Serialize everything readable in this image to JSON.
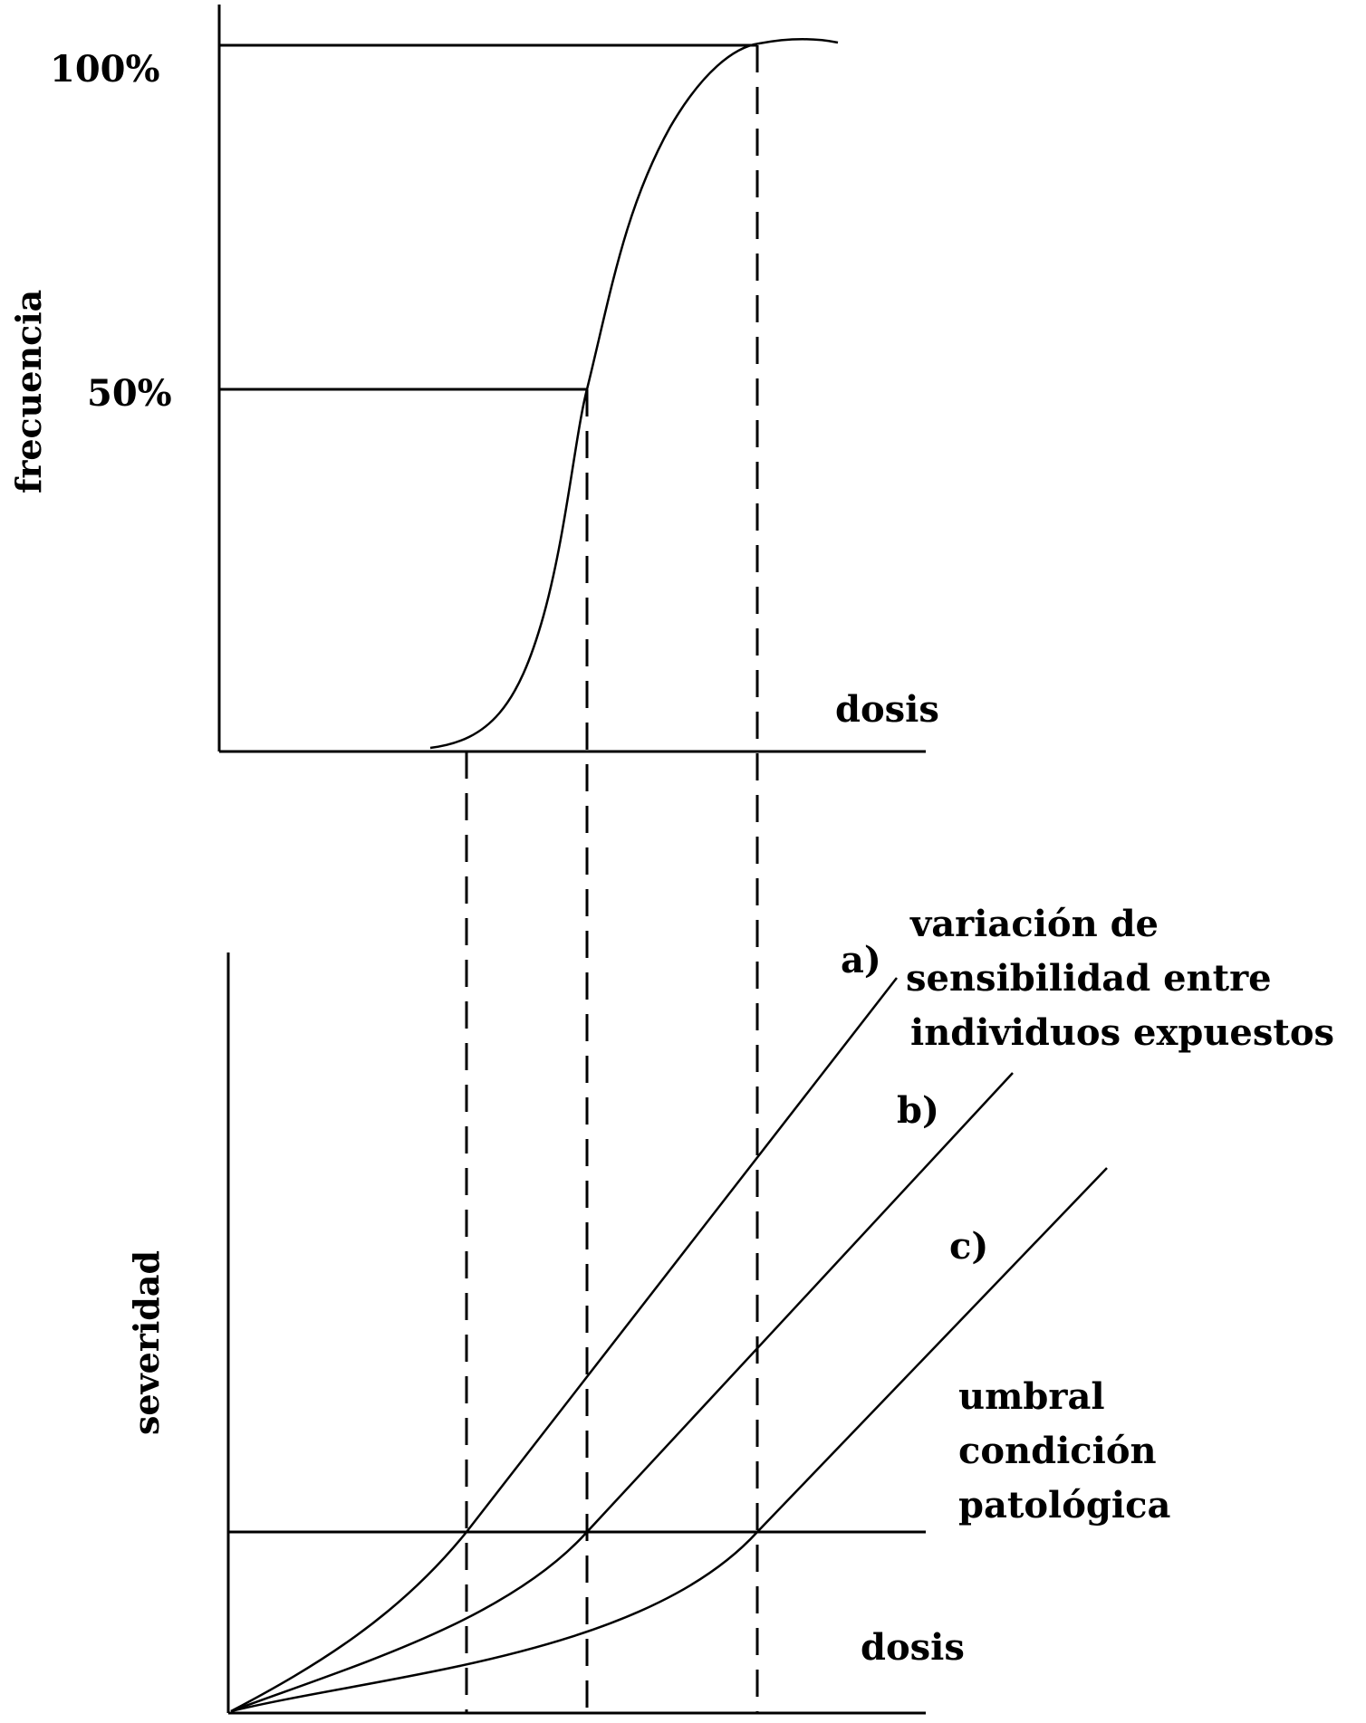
{
  "top_chart": {
    "ylabel": "frecuencia",
    "xlabel": "dosis",
    "ticks": [
      "100%",
      "50%"
    ]
  },
  "bottom_chart": {
    "ylabel": "severidad",
    "xlabel": "dosis",
    "curve_labels": [
      "a)",
      "b)",
      "c)"
    ],
    "annotation_lines": [
      "variación de",
      "sensibilidad entre",
      "individuos expuestos"
    ],
    "threshold_lines": [
      "umbral",
      "condición",
      "patológica"
    ]
  },
  "colors": {
    "ink": "#000000",
    "background": "#ffffff"
  }
}
